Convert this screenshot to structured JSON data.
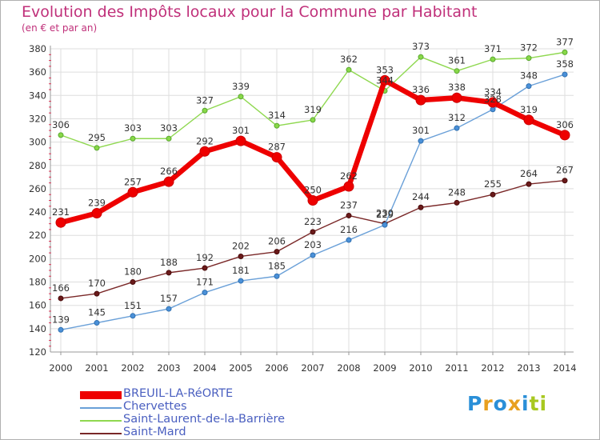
{
  "header": {
    "title": "Evolution des Impôts locaux pour la Commune par Habitant",
    "subtitle": "(en € et par an)"
  },
  "logo": {
    "text": "Proxiti",
    "letters": [
      "P",
      "r",
      "o",
      "x",
      "i",
      "ti"
    ]
  },
  "chart_data": {
    "type": "line",
    "title": "Evolution des Impôts locaux pour la Commune par Habitant",
    "subtitle": "(en € et par an)",
    "xlabel": "",
    "ylabel": "",
    "x": [
      "2000",
      "2001",
      "2002",
      "2003",
      "2004",
      "2005",
      "2006",
      "2007",
      "2008",
      "2009",
      "2010",
      "2011",
      "2012",
      "2013",
      "2014"
    ],
    "ylim": [
      120,
      380
    ],
    "yticks": [
      120,
      140,
      160,
      180,
      200,
      220,
      240,
      260,
      280,
      300,
      320,
      340,
      360,
      380
    ],
    "grid": true,
    "legend_position": "bottom-left",
    "series": [
      {
        "name": "BREUIL-LA-RéORTE",
        "color": "#ee0000",
        "values": [
          231,
          239,
          257,
          266,
          292,
          301,
          287,
          250,
          262,
          353,
          336,
          338,
          334,
          319,
          306
        ]
      },
      {
        "name": "Chervettes",
        "color": "#6aa0d8",
        "values": [
          139,
          145,
          151,
          157,
          171,
          181,
          185,
          203,
          216,
          229,
          301,
          312,
          328,
          348,
          358
        ]
      },
      {
        "name": "Saint-Laurent-de-la-Barrière",
        "color": "#8fd850",
        "values": [
          306,
          295,
          303,
          303,
          327,
          339,
          314,
          319,
          362,
          344,
          373,
          361,
          371,
          372,
          377
        ]
      },
      {
        "name": "Saint-Mard",
        "color": "#7a2828",
        "values": [
          166,
          170,
          180,
          188,
          192,
          202,
          206,
          223,
          237,
          230,
          244,
          248,
          255,
          264,
          267
        ]
      }
    ]
  }
}
